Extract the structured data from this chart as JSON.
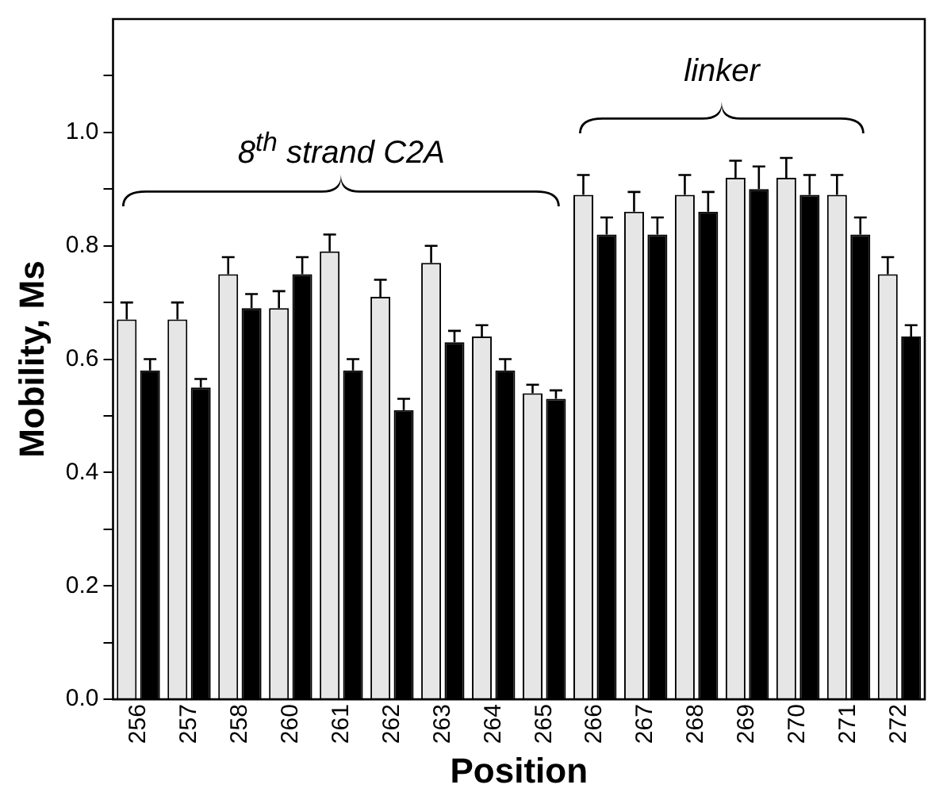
{
  "chart_data": {
    "type": "bar",
    "xlabel": "Position",
    "ylabel": "Mobility, Ms",
    "categories": [
      "256",
      "257",
      "258",
      "260",
      "261",
      "262",
      "263",
      "264",
      "265",
      "266",
      "267",
      "268",
      "269",
      "270",
      "271",
      "272"
    ],
    "series": [
      {
        "color": "#e6e6e6",
        "values": [
          0.67,
          0.67,
          0.75,
          0.69,
          0.79,
          0.71,
          0.77,
          0.64,
          0.54,
          0.89,
          0.86,
          0.89,
          0.92,
          0.92,
          0.89,
          0.75
        ],
        "errors": [
          [
            0.67,
            0.7
          ],
          [
            0.67,
            0.7
          ],
          [
            0.75,
            0.78
          ],
          [
            0.69,
            0.72
          ],
          [
            0.79,
            0.82
          ],
          [
            0.71,
            0.74
          ],
          [
            0.77,
            0.8
          ],
          [
            0.64,
            0.66
          ],
          [
            0.54,
            0.555
          ],
          [
            0.89,
            0.925
          ],
          [
            0.86,
            0.895
          ],
          [
            0.89,
            0.925
          ],
          [
            0.92,
            0.95
          ],
          [
            0.92,
            0.955
          ],
          [
            0.89,
            0.925
          ],
          [
            0.75,
            0.78
          ]
        ]
      },
      {
        "color": "#000000",
        "values": [
          0.58,
          0.55,
          0.69,
          0.75,
          0.58,
          0.51,
          0.63,
          0.58,
          0.53,
          0.82,
          0.82,
          0.86,
          0.9,
          0.89,
          0.82,
          0.64
        ],
        "errors": [
          [
            0.58,
            0.6
          ],
          [
            0.55,
            0.565
          ],
          [
            0.69,
            0.715
          ],
          [
            0.75,
            0.78
          ],
          [
            0.58,
            0.6
          ],
          [
            0.51,
            0.53
          ],
          [
            0.63,
            0.65
          ],
          [
            0.58,
            0.6
          ],
          [
            0.53,
            0.545
          ],
          [
            0.82,
            0.85
          ],
          [
            0.82,
            0.85
          ],
          [
            0.86,
            0.895
          ],
          [
            0.9,
            0.94
          ],
          [
            0.89,
            0.925
          ],
          [
            0.82,
            0.85
          ],
          [
            0.64,
            0.66
          ]
        ]
      }
    ],
    "ylim": [
      0,
      1.2
    ],
    "yticks": [
      {
        "value": 0,
        "label": "0.0"
      },
      {
        "value": 0.1,
        "label": null
      },
      0.2,
      {
        "value": 0.3,
        "label": null
      },
      0.4,
      {
        "value": 0.5,
        "label": null
      },
      0.6,
      {
        "value": 0.7,
        "label": null
      },
      0.8,
      {
        "value": 0.9,
        "label": null
      },
      {
        "value": 1.0,
        "label": "1.0"
      },
      {
        "value": 1.1,
        "label": null
      }
    ],
    "grid": false,
    "annotations": [
      "8$^{th}$ strand C2A",
      "linker"
    ]
  }
}
